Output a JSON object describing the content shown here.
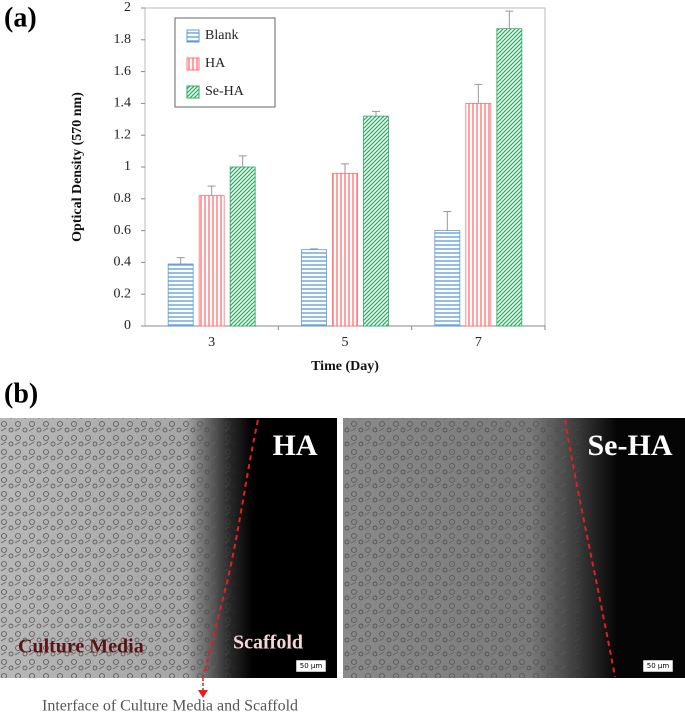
{
  "chart_data": {
    "type": "bar",
    "x_label": "Time (Day)",
    "y_label": "Optical Density (570 nm)",
    "categories": [
      "3",
      "5",
      "7"
    ],
    "series": [
      {
        "name": "Blank",
        "color": "#5b9bd5",
        "hatch": "horizontal",
        "values": [
          0.39,
          0.48,
          0.6
        ],
        "errors": [
          0.04,
          0.005,
          0.12
        ]
      },
      {
        "name": "HA",
        "color": "#ff6f73",
        "hatch": "vertical",
        "values": [
          0.82,
          0.96,
          1.4
        ],
        "errors": [
          0.06,
          0.06,
          0.12
        ]
      },
      {
        "name": "Se-HA",
        "color": "#2eaa64",
        "hatch": "diagonal",
        "values": [
          1.0,
          1.32,
          1.87
        ],
        "errors": [
          0.07,
          0.03,
          0.11
        ]
      }
    ],
    "ylim": [
      0,
      2
    ],
    "yticks": [
      0,
      0.2,
      0.4,
      0.6,
      0.8,
      1,
      1.2,
      1.4,
      1.6,
      1.8,
      2
    ],
    "grid": false,
    "legend": "upper left"
  },
  "panel_labels": [
    "(a)",
    "(b)"
  ],
  "images": [
    {
      "label": "HA",
      "left_text": "Culture Media",
      "right_text": "Scaffold",
      "scale_bar": "50 μm"
    },
    {
      "label": "Se-HA",
      "scale_bar": "50 μm"
    }
  ],
  "caption": "Interface of Culture Media and Scaffold"
}
